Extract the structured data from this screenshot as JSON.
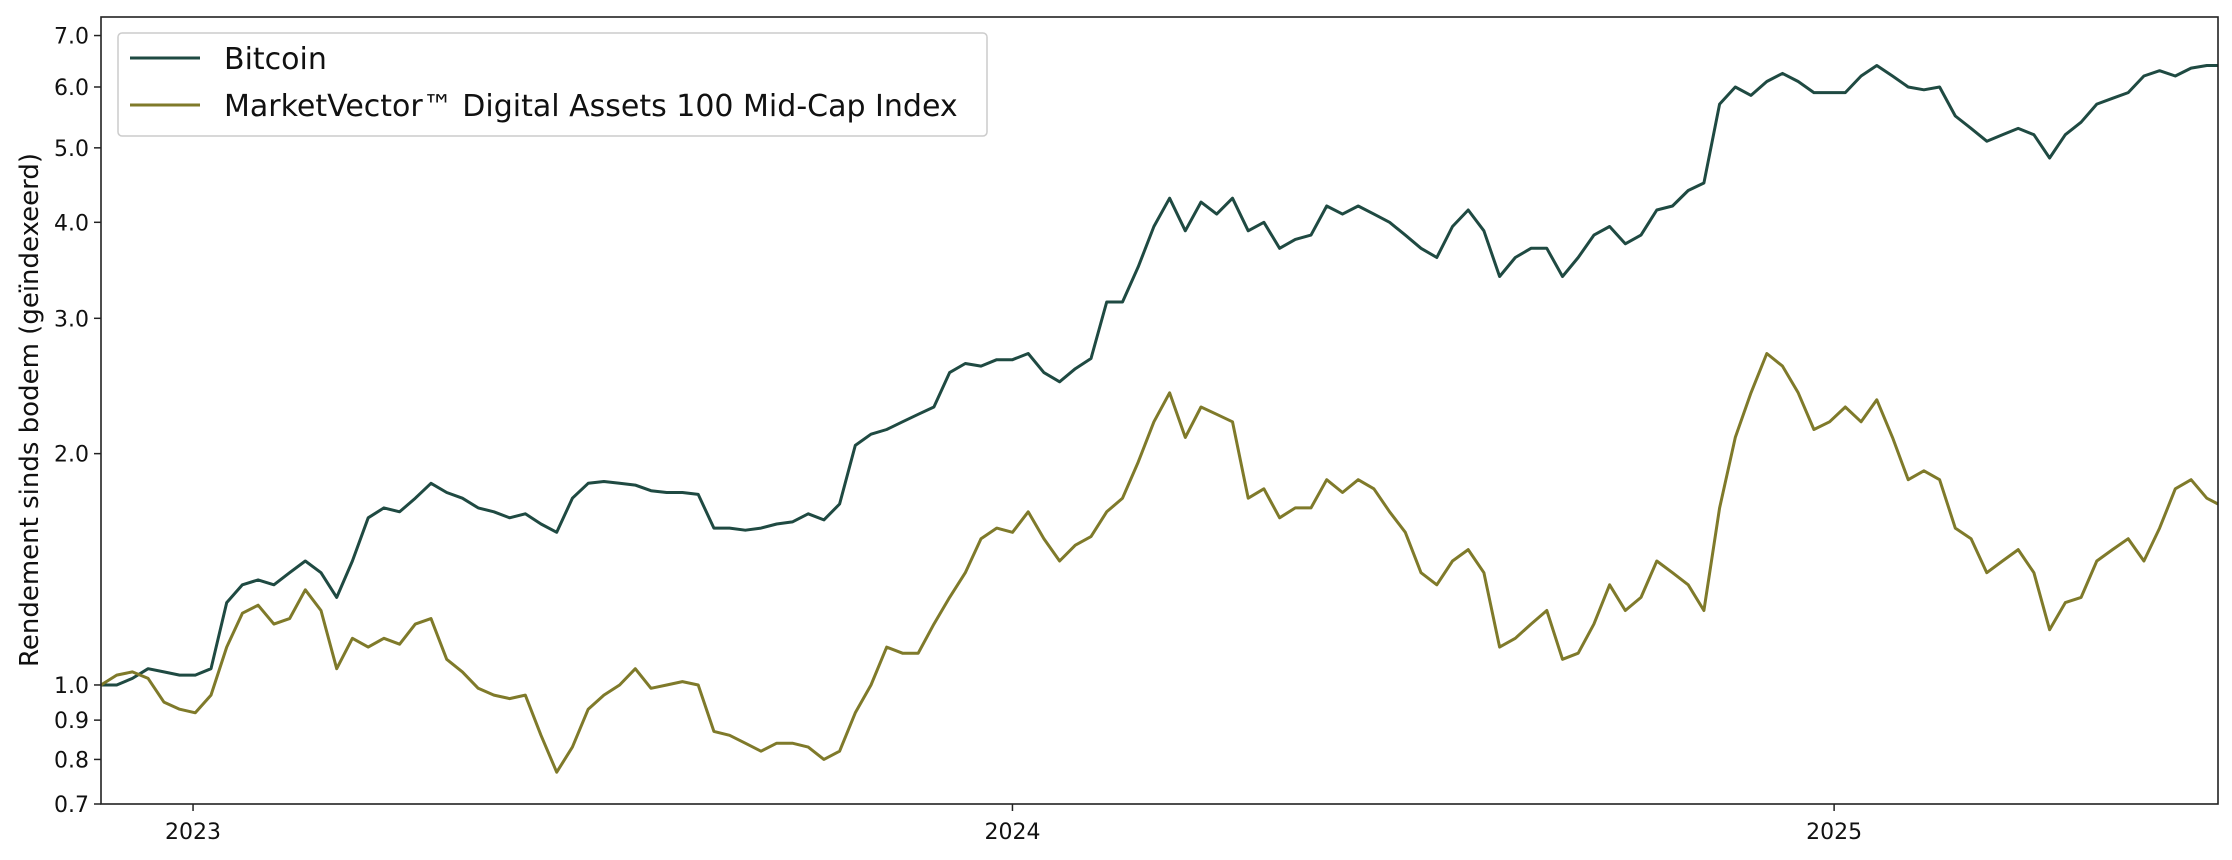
{
  "chart_data": {
    "type": "line",
    "title": "",
    "xlabel": "",
    "ylabel": "Rendement sinds bodem (geïndexeerd)",
    "yscale": "log",
    "ylim": [
      0.7,
      7.4
    ],
    "xlim": [
      "2022-11-21",
      "2025-06-21"
    ],
    "yticks": [
      0.7,
      0.8,
      0.9,
      1.0,
      2.0,
      3.0,
      4.0,
      5.0,
      6.0,
      7.0
    ],
    "ytick_labels": [
      "0.7",
      "0.8",
      "0.9",
      "1.0",
      "2.0",
      "3.0",
      "4.0",
      "5.0",
      "6.0",
      "7.0"
    ],
    "xticks": [
      "2023-01-01",
      "2024-01-01",
      "2025-01-01"
    ],
    "xtick_labels": [
      "2023",
      "2024",
      "2025"
    ],
    "grid": false,
    "legend_position": "top-left",
    "series": [
      {
        "name": "Bitcoin",
        "color": "#1f4a42",
        "points": [
          [
            "2022-11-21",
            1.0
          ],
          [
            "2022-11-28",
            1.0
          ],
          [
            "2022-12-05",
            1.02
          ],
          [
            "2022-12-12",
            1.05
          ],
          [
            "2022-12-19",
            1.04
          ],
          [
            "2022-12-26",
            1.03
          ],
          [
            "2023-01-02",
            1.03
          ],
          [
            "2023-01-09",
            1.05
          ],
          [
            "2023-01-16",
            1.28
          ],
          [
            "2023-01-23",
            1.35
          ],
          [
            "2023-01-30",
            1.37
          ],
          [
            "2023-02-06",
            1.35
          ],
          [
            "2023-02-13",
            1.4
          ],
          [
            "2023-02-20",
            1.45
          ],
          [
            "2023-02-27",
            1.4
          ],
          [
            "2023-03-06",
            1.3
          ],
          [
            "2023-03-13",
            1.45
          ],
          [
            "2023-03-20",
            1.65
          ],
          [
            "2023-03-27",
            1.7
          ],
          [
            "2023-04-03",
            1.68
          ],
          [
            "2023-04-10",
            1.75
          ],
          [
            "2023-04-17",
            1.83
          ],
          [
            "2023-04-24",
            1.78
          ],
          [
            "2023-05-01",
            1.75
          ],
          [
            "2023-05-08",
            1.7
          ],
          [
            "2023-05-15",
            1.68
          ],
          [
            "2023-05-22",
            1.65
          ],
          [
            "2023-05-29",
            1.67
          ],
          [
            "2023-06-05",
            1.62
          ],
          [
            "2023-06-12",
            1.58
          ],
          [
            "2023-06-19",
            1.75
          ],
          [
            "2023-06-26",
            1.83
          ],
          [
            "2023-07-03",
            1.84
          ],
          [
            "2023-07-10",
            1.83
          ],
          [
            "2023-07-17",
            1.82
          ],
          [
            "2023-07-24",
            1.79
          ],
          [
            "2023-07-31",
            1.78
          ],
          [
            "2023-08-07",
            1.78
          ],
          [
            "2023-08-14",
            1.77
          ],
          [
            "2023-08-21",
            1.6
          ],
          [
            "2023-08-28",
            1.6
          ],
          [
            "2023-09-04",
            1.59
          ],
          [
            "2023-09-11",
            1.6
          ],
          [
            "2023-09-18",
            1.62
          ],
          [
            "2023-09-25",
            1.63
          ],
          [
            "2023-10-02",
            1.67
          ],
          [
            "2023-10-09",
            1.64
          ],
          [
            "2023-10-16",
            1.72
          ],
          [
            "2023-10-23",
            2.05
          ],
          [
            "2023-10-30",
            2.12
          ],
          [
            "2023-11-06",
            2.15
          ],
          [
            "2023-11-13",
            2.2
          ],
          [
            "2023-11-20",
            2.25
          ],
          [
            "2023-11-27",
            2.3
          ],
          [
            "2023-12-04",
            2.55
          ],
          [
            "2023-12-11",
            2.62
          ],
          [
            "2023-12-18",
            2.6
          ],
          [
            "2023-12-25",
            2.65
          ],
          [
            "2024-01-01",
            2.65
          ],
          [
            "2024-01-08",
            2.7
          ],
          [
            "2024-01-15",
            2.55
          ],
          [
            "2024-01-22",
            2.48
          ],
          [
            "2024-01-29",
            2.58
          ],
          [
            "2024-02-05",
            2.66
          ],
          [
            "2024-02-12",
            3.15
          ],
          [
            "2024-02-19",
            3.15
          ],
          [
            "2024-02-26",
            3.5
          ],
          [
            "2024-03-04",
            3.95
          ],
          [
            "2024-03-11",
            4.3
          ],
          [
            "2024-03-18",
            3.9
          ],
          [
            "2024-03-25",
            4.25
          ],
          [
            "2024-04-01",
            4.1
          ],
          [
            "2024-04-08",
            4.3
          ],
          [
            "2024-04-15",
            3.9
          ],
          [
            "2024-04-22",
            4.0
          ],
          [
            "2024-04-29",
            3.7
          ],
          [
            "2024-05-06",
            3.8
          ],
          [
            "2024-05-13",
            3.85
          ],
          [
            "2024-05-20",
            4.2
          ],
          [
            "2024-05-27",
            4.1
          ],
          [
            "2024-06-03",
            4.2
          ],
          [
            "2024-06-10",
            4.1
          ],
          [
            "2024-06-17",
            4.0
          ],
          [
            "2024-06-24",
            3.85
          ],
          [
            "2024-07-01",
            3.7
          ],
          [
            "2024-07-08",
            3.6
          ],
          [
            "2024-07-15",
            3.95
          ],
          [
            "2024-07-22",
            4.15
          ],
          [
            "2024-07-29",
            3.9
          ],
          [
            "2024-08-05",
            3.4
          ],
          [
            "2024-08-12",
            3.6
          ],
          [
            "2024-08-19",
            3.7
          ],
          [
            "2024-08-26",
            3.7
          ],
          [
            "2024-09-02",
            3.4
          ],
          [
            "2024-09-09",
            3.6
          ],
          [
            "2024-09-16",
            3.85
          ],
          [
            "2024-09-23",
            3.95
          ],
          [
            "2024-09-30",
            3.75
          ],
          [
            "2024-10-07",
            3.85
          ],
          [
            "2024-10-14",
            4.15
          ],
          [
            "2024-10-21",
            4.2
          ],
          [
            "2024-10-28",
            4.4
          ],
          [
            "2024-11-04",
            4.5
          ],
          [
            "2024-11-11",
            5.7
          ],
          [
            "2024-11-18",
            6.0
          ],
          [
            "2024-11-25",
            5.85
          ],
          [
            "2024-12-02",
            6.1
          ],
          [
            "2024-12-09",
            6.25
          ],
          [
            "2024-12-16",
            6.1
          ],
          [
            "2024-12-23",
            5.9
          ],
          [
            "2024-12-30",
            5.9
          ],
          [
            "2025-01-06",
            5.9
          ],
          [
            "2025-01-13",
            6.2
          ],
          [
            "2025-01-20",
            6.4
          ],
          [
            "2025-01-27",
            6.2
          ],
          [
            "2025-02-03",
            6.0
          ],
          [
            "2025-02-10",
            5.95
          ],
          [
            "2025-02-17",
            6.0
          ],
          [
            "2025-02-24",
            5.5
          ],
          [
            "2025-03-03",
            5.3
          ],
          [
            "2025-03-10",
            5.1
          ],
          [
            "2025-03-17",
            5.2
          ],
          [
            "2025-03-24",
            5.3
          ],
          [
            "2025-03-31",
            5.2
          ],
          [
            "2025-04-07",
            4.85
          ],
          [
            "2025-04-14",
            5.2
          ],
          [
            "2025-04-21",
            5.4
          ],
          [
            "2025-04-28",
            5.7
          ],
          [
            "2025-05-05",
            5.8
          ],
          [
            "2025-05-12",
            5.9
          ],
          [
            "2025-05-19",
            6.2
          ],
          [
            "2025-05-26",
            6.3
          ],
          [
            "2025-06-02",
            6.2
          ],
          [
            "2025-06-09",
            6.35
          ],
          [
            "2025-06-16",
            6.4
          ],
          [
            "2025-06-21",
            6.4
          ]
        ]
      },
      {
        "name": "MarketVector™ Digital Assets 100 Mid-Cap Index",
        "color": "#7f7a2a",
        "points": [
          [
            "2022-11-21",
            1.0
          ],
          [
            "2022-11-28",
            1.03
          ],
          [
            "2022-12-05",
            1.04
          ],
          [
            "2022-12-12",
            1.02
          ],
          [
            "2022-12-19",
            0.95
          ],
          [
            "2022-12-26",
            0.93
          ],
          [
            "2023-01-02",
            0.92
          ],
          [
            "2023-01-09",
            0.97
          ],
          [
            "2023-01-16",
            1.12
          ],
          [
            "2023-01-23",
            1.24
          ],
          [
            "2023-01-30",
            1.27
          ],
          [
            "2023-02-06",
            1.2
          ],
          [
            "2023-02-13",
            1.22
          ],
          [
            "2023-02-20",
            1.33
          ],
          [
            "2023-02-27",
            1.25
          ],
          [
            "2023-03-06",
            1.05
          ],
          [
            "2023-03-13",
            1.15
          ],
          [
            "2023-03-20",
            1.12
          ],
          [
            "2023-03-27",
            1.15
          ],
          [
            "2023-04-03",
            1.13
          ],
          [
            "2023-04-10",
            1.2
          ],
          [
            "2023-04-17",
            1.22
          ],
          [
            "2023-04-24",
            1.08
          ],
          [
            "2023-05-01",
            1.04
          ],
          [
            "2023-05-08",
            0.99
          ],
          [
            "2023-05-15",
            0.97
          ],
          [
            "2023-05-22",
            0.96
          ],
          [
            "2023-05-29",
            0.97
          ],
          [
            "2023-06-05",
            0.86
          ],
          [
            "2023-06-12",
            0.77
          ],
          [
            "2023-06-19",
            0.83
          ],
          [
            "2023-06-26",
            0.93
          ],
          [
            "2023-07-03",
            0.97
          ],
          [
            "2023-07-10",
            1.0
          ],
          [
            "2023-07-17",
            1.05
          ],
          [
            "2023-07-24",
            0.99
          ],
          [
            "2023-07-31",
            1.0
          ],
          [
            "2023-08-07",
            1.01
          ],
          [
            "2023-08-14",
            1.0
          ],
          [
            "2023-08-21",
            0.87
          ],
          [
            "2023-08-28",
            0.86
          ],
          [
            "2023-09-04",
            0.84
          ],
          [
            "2023-09-11",
            0.82
          ],
          [
            "2023-09-18",
            0.84
          ],
          [
            "2023-09-25",
            0.84
          ],
          [
            "2023-10-02",
            0.83
          ],
          [
            "2023-10-09",
            0.8
          ],
          [
            "2023-10-16",
            0.82
          ],
          [
            "2023-10-23",
            0.92
          ],
          [
            "2023-10-30",
            1.0
          ],
          [
            "2023-11-06",
            1.12
          ],
          [
            "2023-11-13",
            1.1
          ],
          [
            "2023-11-20",
            1.1
          ],
          [
            "2023-11-27",
            1.2
          ],
          [
            "2023-12-04",
            1.3
          ],
          [
            "2023-12-11",
            1.4
          ],
          [
            "2023-12-18",
            1.55
          ],
          [
            "2023-12-25",
            1.6
          ],
          [
            "2024-01-01",
            1.58
          ],
          [
            "2024-01-08",
            1.68
          ],
          [
            "2024-01-15",
            1.55
          ],
          [
            "2024-01-22",
            1.45
          ],
          [
            "2024-01-29",
            1.52
          ],
          [
            "2024-02-05",
            1.56
          ],
          [
            "2024-02-12",
            1.68
          ],
          [
            "2024-02-19",
            1.75
          ],
          [
            "2024-02-26",
            1.95
          ],
          [
            "2024-03-04",
            2.2
          ],
          [
            "2024-03-11",
            2.4
          ],
          [
            "2024-03-18",
            2.1
          ],
          [
            "2024-03-25",
            2.3
          ],
          [
            "2024-04-01",
            2.25
          ],
          [
            "2024-04-08",
            2.2
          ],
          [
            "2024-04-15",
            1.75
          ],
          [
            "2024-04-22",
            1.8
          ],
          [
            "2024-04-29",
            1.65
          ],
          [
            "2024-05-06",
            1.7
          ],
          [
            "2024-05-13",
            1.7
          ],
          [
            "2024-05-20",
            1.85
          ],
          [
            "2024-05-27",
            1.78
          ],
          [
            "2024-06-03",
            1.85
          ],
          [
            "2024-06-10",
            1.8
          ],
          [
            "2024-06-17",
            1.68
          ],
          [
            "2024-06-24",
            1.58
          ],
          [
            "2024-07-01",
            1.4
          ],
          [
            "2024-07-08",
            1.35
          ],
          [
            "2024-07-15",
            1.45
          ],
          [
            "2024-07-22",
            1.5
          ],
          [
            "2024-07-29",
            1.4
          ],
          [
            "2024-08-05",
            1.12
          ],
          [
            "2024-08-12",
            1.15
          ],
          [
            "2024-08-19",
            1.2
          ],
          [
            "2024-08-26",
            1.25
          ],
          [
            "2024-09-02",
            1.08
          ],
          [
            "2024-09-09",
            1.1
          ],
          [
            "2024-09-16",
            1.2
          ],
          [
            "2024-09-23",
            1.35
          ],
          [
            "2024-09-30",
            1.25
          ],
          [
            "2024-10-07",
            1.3
          ],
          [
            "2024-10-14",
            1.45
          ],
          [
            "2024-10-21",
            1.4
          ],
          [
            "2024-10-28",
            1.35
          ],
          [
            "2024-11-04",
            1.25
          ],
          [
            "2024-11-11",
            1.7
          ],
          [
            "2024-11-18",
            2.1
          ],
          [
            "2024-11-25",
            2.4
          ],
          [
            "2024-12-02",
            2.7
          ],
          [
            "2024-12-09",
            2.6
          ],
          [
            "2024-12-16",
            2.4
          ],
          [
            "2024-12-23",
            2.15
          ],
          [
            "2024-12-30",
            2.2
          ],
          [
            "2025-01-06",
            2.3
          ],
          [
            "2025-01-13",
            2.2
          ],
          [
            "2025-01-20",
            2.35
          ],
          [
            "2025-01-27",
            2.1
          ],
          [
            "2025-02-03",
            1.85
          ],
          [
            "2025-02-10",
            1.9
          ],
          [
            "2025-02-17",
            1.85
          ],
          [
            "2025-02-24",
            1.6
          ],
          [
            "2025-03-03",
            1.55
          ],
          [
            "2025-03-10",
            1.4
          ],
          [
            "2025-03-17",
            1.45
          ],
          [
            "2025-03-24",
            1.5
          ],
          [
            "2025-03-31",
            1.4
          ],
          [
            "2025-04-07",
            1.18
          ],
          [
            "2025-04-14",
            1.28
          ],
          [
            "2025-04-21",
            1.3
          ],
          [
            "2025-04-28",
            1.45
          ],
          [
            "2025-05-05",
            1.5
          ],
          [
            "2025-05-12",
            1.55
          ],
          [
            "2025-05-19",
            1.45
          ],
          [
            "2025-05-26",
            1.6
          ],
          [
            "2025-06-02",
            1.8
          ],
          [
            "2025-06-09",
            1.85
          ],
          [
            "2025-06-16",
            1.75
          ],
          [
            "2025-06-21",
            1.72
          ]
        ]
      }
    ]
  }
}
